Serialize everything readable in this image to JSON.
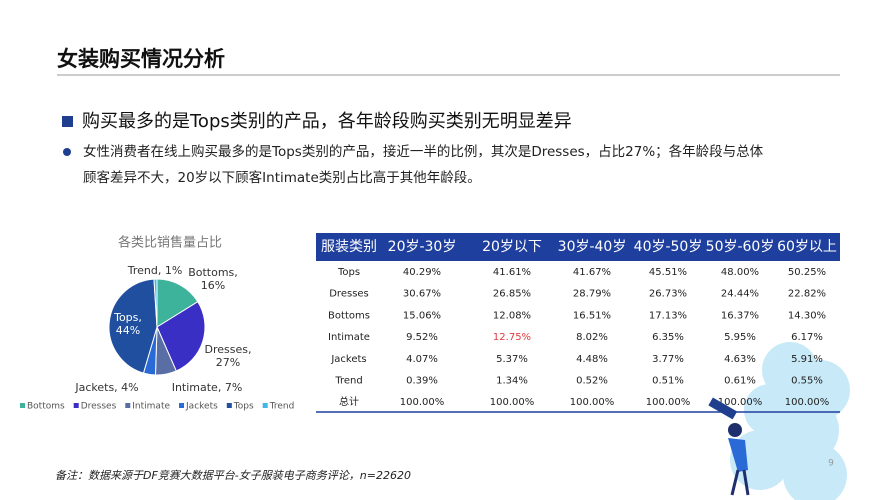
{
  "header": {
    "title": "女装购买情况分析"
  },
  "heading": "购买最多的是Tops类别的产品，各年龄段购买类别无明显差异",
  "bullet_text": [
    "女性消费者在线上购买最多的是Tops类别的产品，接近一半的比例，其次是Dresses，占比27%；各年龄段与总体",
    "顾客差异不大，20岁以下顾客Intimate类别占比高于其他年龄段。"
  ],
  "chart_data": {
    "type": "pie",
    "title": "各类比销售量占比",
    "categories": [
      "Bottoms",
      "Dresses",
      "Intimate",
      "Jackets",
      "Tops",
      "Trend"
    ],
    "values": [
      16,
      27,
      7,
      4,
      44,
      1
    ],
    "value_labels": [
      "Bottoms, 16%",
      "Dresses, 27%",
      "Intimate, 7%",
      "Jackets, 4%",
      "Tops, 44%",
      "Trend, 1%"
    ],
    "colors": [
      "#3db39c",
      "#3a2fc4",
      "#5a6ea6",
      "#2a6ad6",
      "#1f4f9e",
      "#3fb8e8"
    ],
    "legend": "bottom"
  },
  "table": {
    "header": [
      "服装类别",
      "20岁-30岁",
      "20岁以下",
      "30岁-40岁",
      "40岁-50岁",
      "50岁-60岁",
      "60岁以上"
    ],
    "rows": [
      [
        "Tops",
        "40.29%",
        "41.61%",
        "41.67%",
        "45.51%",
        "48.00%",
        "50.25%"
      ],
      [
        "Dresses",
        "30.67%",
        "26.85%",
        "28.79%",
        "26.73%",
        "24.44%",
        "22.82%"
      ],
      [
        "Bottoms",
        "15.06%",
        "12.08%",
        "16.51%",
        "17.13%",
        "16.37%",
        "14.30%"
      ],
      [
        "Intimate",
        "9.52%",
        "12.75%",
        "8.02%",
        "6.35%",
        "5.95%",
        "6.17%"
      ],
      [
        "Jackets",
        "4.07%",
        "5.37%",
        "4.48%",
        "3.77%",
        "4.63%",
        "5.91%"
      ],
      [
        "Trend",
        "0.39%",
        "1.34%",
        "0.52%",
        "0.51%",
        "0.61%",
        "0.55%"
      ],
      [
        "总计",
        "100.00%",
        "100.00%",
        "100.00%",
        "100.00%",
        "100.00%",
        "100.00%"
      ]
    ],
    "highlight": {
      "row": 3,
      "col": 2,
      "color": "#e03a3a"
    }
  },
  "footnote": "备注：数据来源于DF竞赛大数据平台-女子服装电子商务评论，n=22620",
  "page_number": "9"
}
